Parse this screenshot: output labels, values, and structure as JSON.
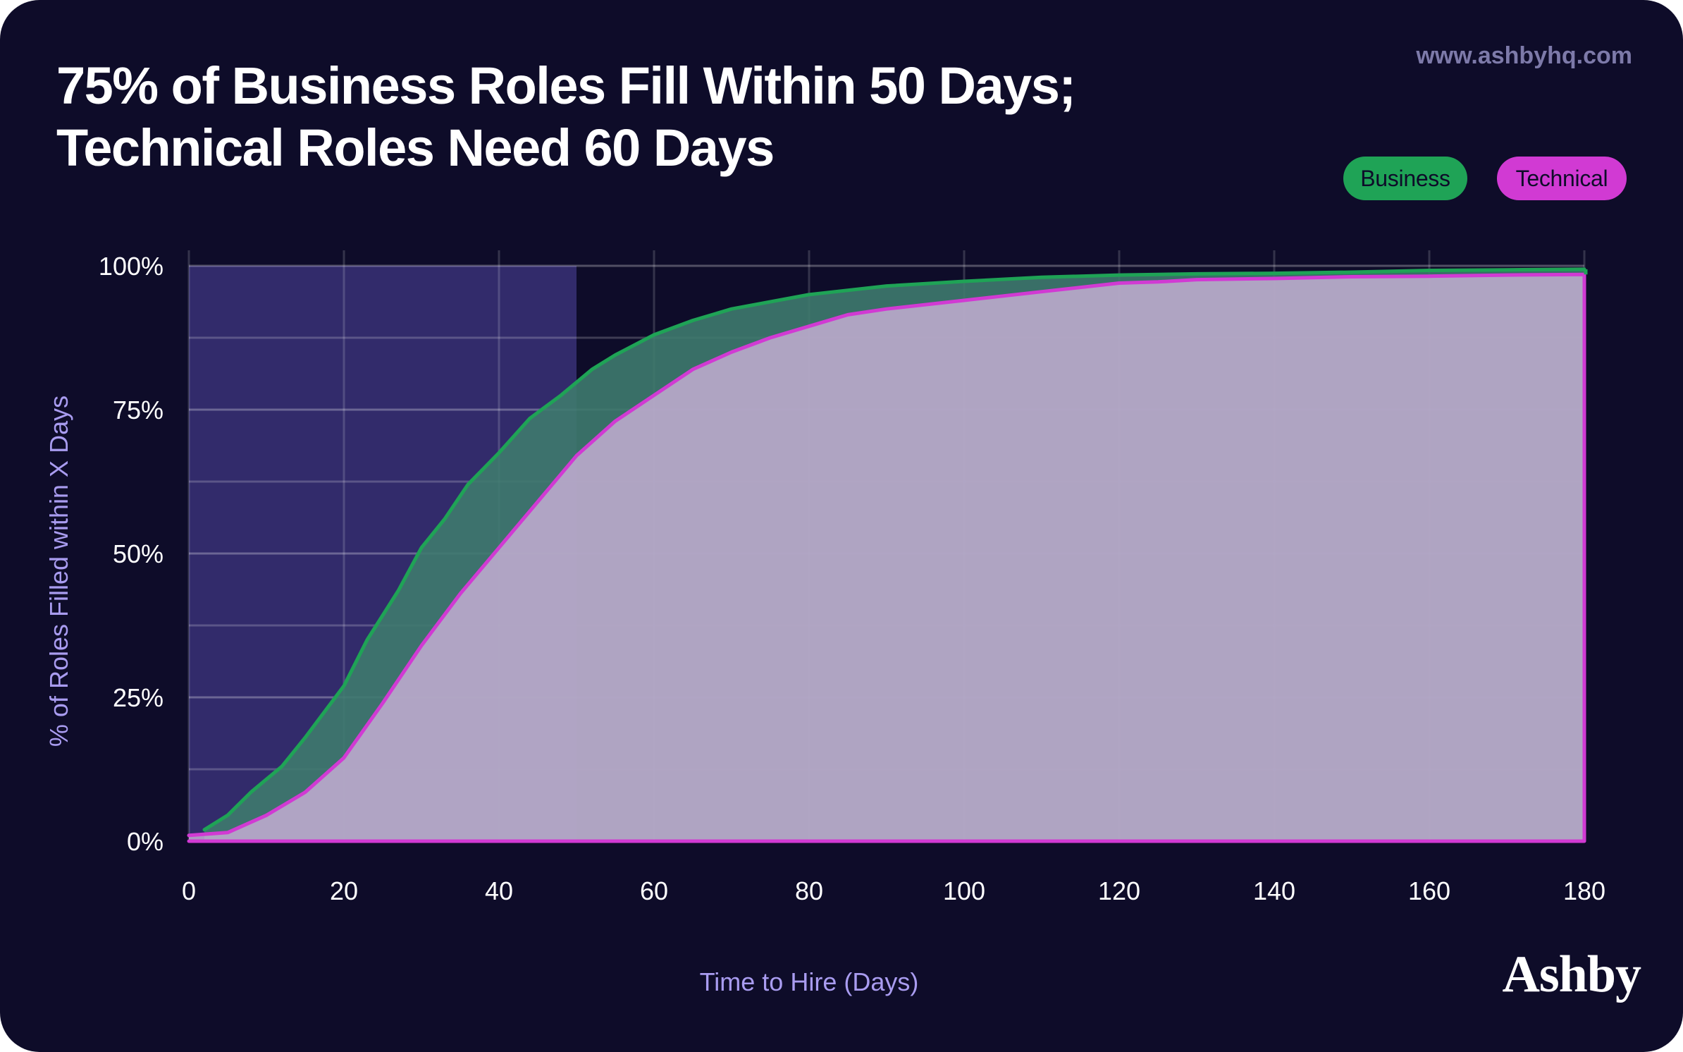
{
  "header": {
    "title_line1": "75% of Business Roles Fill Within 50 Days;",
    "title_line2": "Technical Roles Need 60 Days",
    "url": "www.ashbyhq.com",
    "logo": "Ashby"
  },
  "legend": {
    "business": "Business",
    "technical": "Technical"
  },
  "colors": {
    "background": "#0e0c29",
    "business": "#1fa356",
    "technical": "#d13ad3",
    "highlight_band": "#322b6b",
    "axis_label": "#a99cf0"
  },
  "chart_data": {
    "type": "area",
    "xlabel": "Time to Hire (Days)",
    "ylabel": "% of Roles Filled within X Days",
    "xlim": [
      0,
      180
    ],
    "ylim": [
      0,
      100
    ],
    "x_ticks": [
      0,
      20,
      40,
      60,
      80,
      100,
      120,
      140,
      160,
      180
    ],
    "y_ticks": [
      0,
      25,
      50,
      75,
      100
    ],
    "y_tick_labels": [
      "0%",
      "25%",
      "50%",
      "75%",
      "100%"
    ],
    "grid": true,
    "legend_position": "top-right",
    "highlight_range": [
      0,
      50
    ],
    "series": [
      {
        "name": "Business",
        "color": "#1fa356",
        "points": [
          [
            2,
            2
          ],
          [
            5,
            4.5
          ],
          [
            8,
            8.5
          ],
          [
            12,
            13
          ],
          [
            15,
            18
          ],
          [
            20,
            27
          ],
          [
            23,
            35
          ],
          [
            27,
            43.5
          ],
          [
            30,
            51
          ],
          [
            33,
            56
          ],
          [
            36,
            62
          ],
          [
            40,
            67.5
          ],
          [
            44,
            73.5
          ],
          [
            48,
            77.5
          ],
          [
            52,
            82
          ],
          [
            55,
            84.5
          ],
          [
            60,
            88
          ],
          [
            65,
            90.5
          ],
          [
            70,
            92.5
          ],
          [
            80,
            95
          ],
          [
            90,
            96.5
          ],
          [
            100,
            97.3
          ],
          [
            110,
            98
          ],
          [
            120,
            98.4
          ],
          [
            130,
            98.6
          ],
          [
            140,
            98.7
          ],
          [
            150,
            98.9
          ],
          [
            160,
            99.2
          ],
          [
            170,
            99.3
          ],
          [
            180,
            99.4
          ]
        ]
      },
      {
        "name": "Technical",
        "color": "#d13ad3",
        "points": [
          [
            0,
            1
          ],
          [
            5,
            1.5
          ],
          [
            10,
            4.5
          ],
          [
            15,
            8.5
          ],
          [
            20,
            14.5
          ],
          [
            25,
            24
          ],
          [
            30,
            34
          ],
          [
            35,
            43
          ],
          [
            40,
            51
          ],
          [
            45,
            59
          ],
          [
            50,
            67
          ],
          [
            55,
            73
          ],
          [
            60,
            77.5
          ],
          [
            65,
            82
          ],
          [
            70,
            85
          ],
          [
            75,
            87.5
          ],
          [
            80,
            89.5
          ],
          [
            85,
            91.5
          ],
          [
            90,
            92.5
          ],
          [
            100,
            94
          ],
          [
            110,
            95.5
          ],
          [
            120,
            97
          ],
          [
            125,
            97.2
          ],
          [
            130,
            97.6
          ],
          [
            140,
            97.8
          ],
          [
            150,
            98.1
          ],
          [
            160,
            98.2
          ],
          [
            170,
            98.4
          ],
          [
            180,
            98.5
          ]
        ]
      }
    ]
  }
}
